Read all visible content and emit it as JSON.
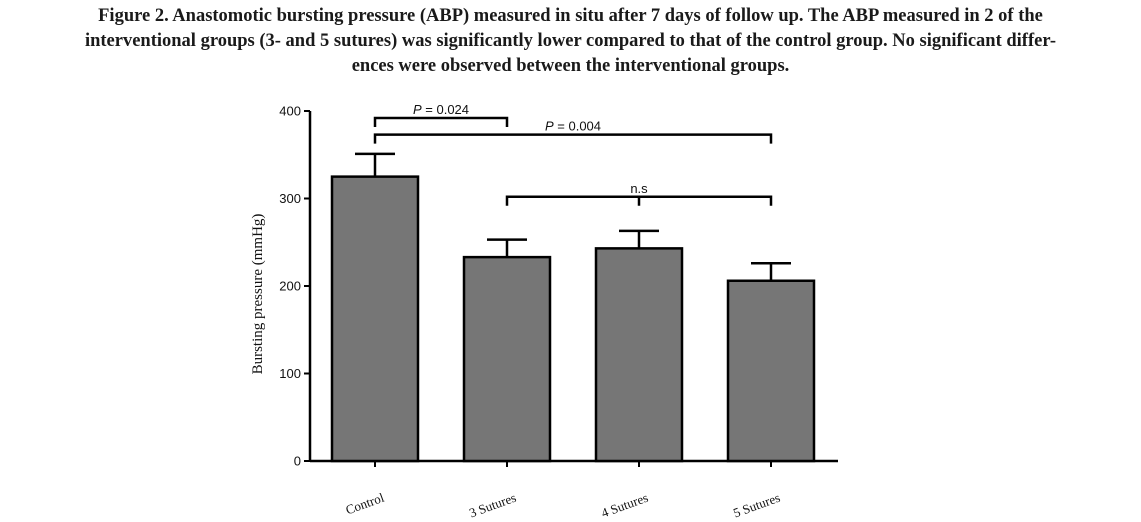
{
  "caption": {
    "line1": "Figure 2. Anastomotic bursting pressure (ABP) measured in situ after 7 days of follow up. The ABP measured in 2 of the",
    "line2": "interventional groups (3- and 5 sutures) was significantly lower compared to that of the control group. No significant differ-",
    "line3": "ences were observed between the interventional groups."
  },
  "chart_data": {
    "type": "bar",
    "title": "",
    "xlabel": "",
    "ylabel": "Bursting pressure (mmHg)",
    "ylim": [
      0,
      400
    ],
    "yticks": [
      "0",
      "100",
      "200",
      "300",
      "400"
    ],
    "categories": [
      "Control",
      "3 Sutures",
      "4 Sutures",
      "5 Sutures"
    ],
    "values": [
      325,
      233,
      243,
      206
    ],
    "error_upper": [
      351,
      253,
      263,
      226
    ],
    "grid": false,
    "legend": "none",
    "colors": {
      "bar": "#767676",
      "axis": "#000000"
    },
    "annotations": [
      {
        "label_italic": "P",
        "label_rest": " = 0.024",
        "from": "Control",
        "to": "3 Sutures",
        "y": 392
      },
      {
        "label_italic": "P",
        "label_rest": " = 0.004",
        "from": "Control",
        "to": "5 Sutures",
        "y": 373
      },
      {
        "label_italic": "",
        "label_rest": "n.s",
        "from": "3 Sutures",
        "to": "5 Sutures",
        "y": 302,
        "mid_tick": "4 Sutures"
      }
    ]
  }
}
